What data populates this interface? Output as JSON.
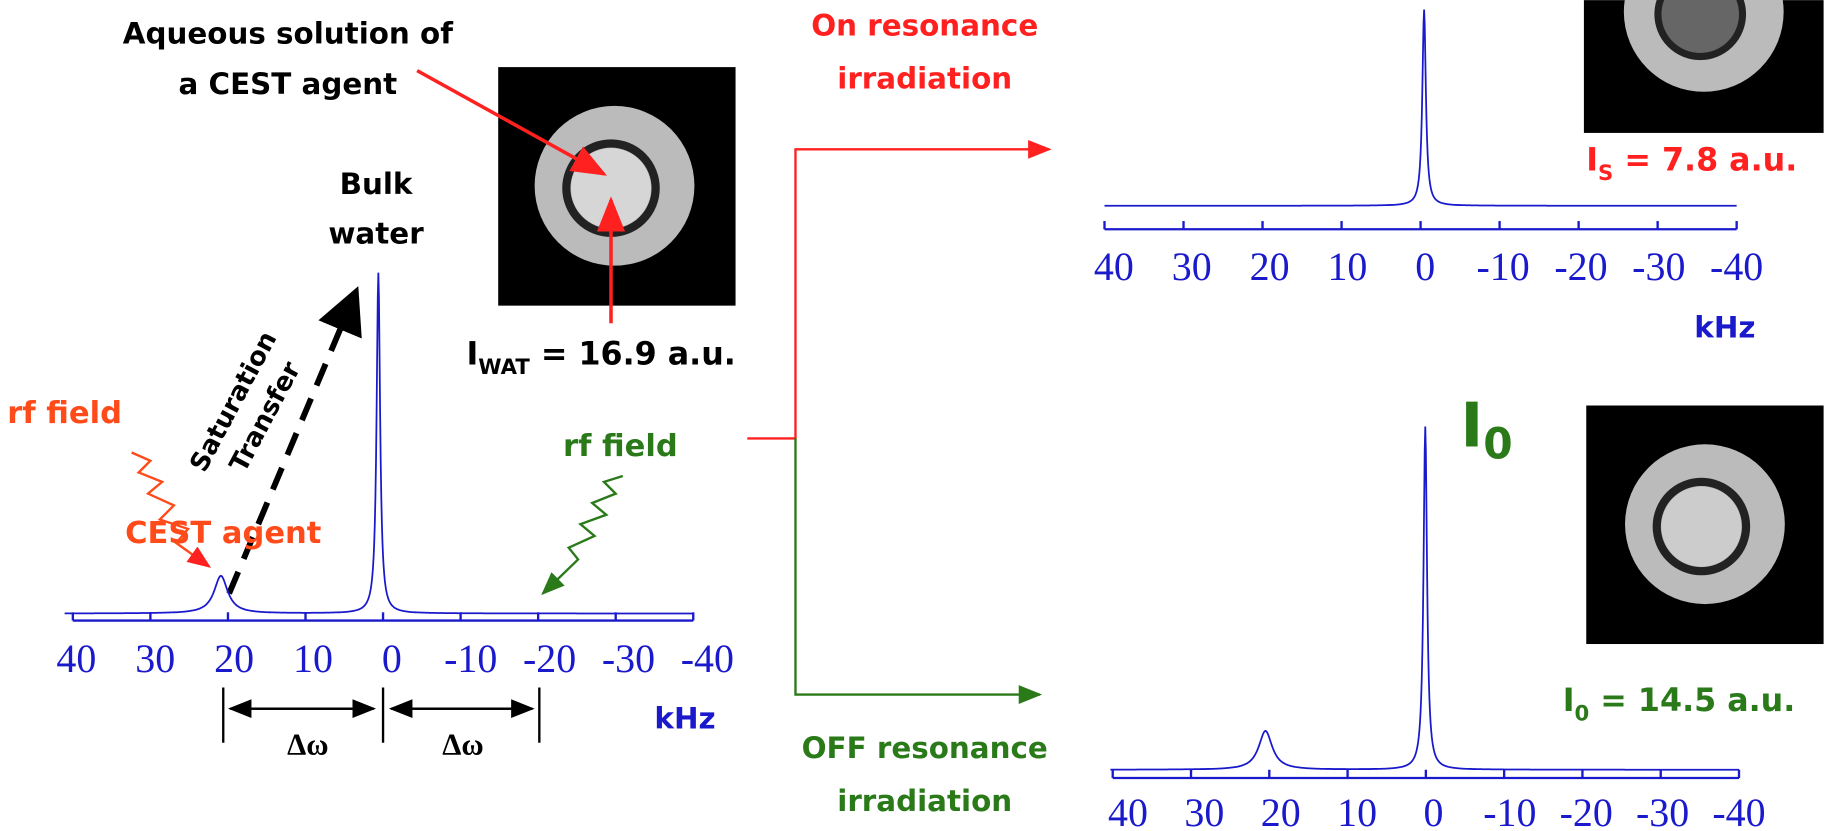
{
  "left": {
    "caption": [
      "Aqueous solution of",
      "a CEST agent"
    ],
    "bulk": [
      "Bulk",
      "water"
    ],
    "saturation": [
      "Saturation",
      "Transfer"
    ],
    "rf_left": "rf field",
    "cest": "CEST agent",
    "rf_right": "rf field",
    "intensity": {
      "symbol": "I",
      "sub": "WAT",
      "text": " = 16.9 a.u."
    },
    "ticks": [
      40,
      30,
      20,
      10,
      0,
      -10,
      -20,
      -30,
      -40
    ],
    "unit": "kHz",
    "delta": [
      "Δω",
      "Δω"
    ]
  },
  "on": {
    "label": [
      "On resonance",
      "irradiation"
    ],
    "intensity": {
      "symbol": "I",
      "sub": "S",
      "text": " = 7.8 a.u."
    },
    "ticks": [
      40,
      30,
      20,
      10,
      0,
      -10,
      -20,
      -30,
      -40
    ],
    "unit": "kHz"
  },
  "off": {
    "label": [
      "OFF resonance",
      "irradiation"
    ],
    "big": {
      "symbol": "I",
      "sub": "0"
    },
    "intensity": {
      "symbol": "I",
      "sub": "0",
      "text": " = 14.5 a.u."
    },
    "ticks": [
      40,
      30,
      20,
      10,
      0,
      -10,
      -20,
      -30,
      -40
    ]
  }
}
